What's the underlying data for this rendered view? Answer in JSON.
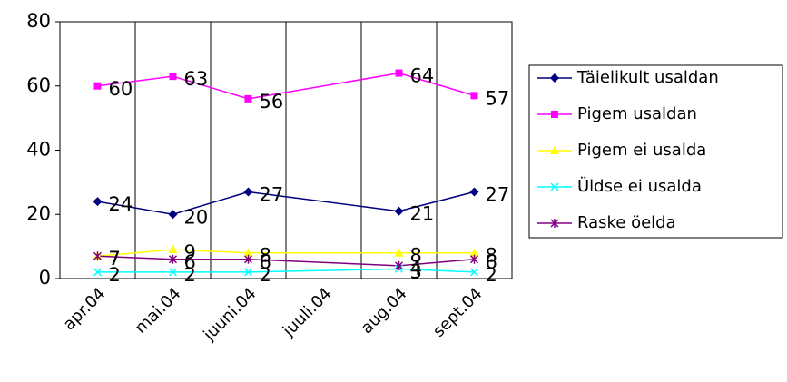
{
  "chart_data": {
    "type": "line",
    "categories": [
      "apr.04",
      "mai.04",
      "juuni.04",
      "juuli.04",
      "aug.04",
      "sept.04"
    ],
    "series": [
      {
        "name": "Täielikult usaldan",
        "color": "#000080",
        "marker": "diamond",
        "values": [
          24,
          20,
          27,
          null,
          21,
          27
        ]
      },
      {
        "name": "Pigem usaldan",
        "color": "#ff00ff",
        "marker": "square",
        "values": [
          60,
          63,
          56,
          null,
          64,
          57
        ]
      },
      {
        "name": "Pigem ei usalda",
        "color": "#ffff00",
        "marker": "triangle",
        "values": [
          7,
          9,
          8,
          null,
          8,
          8
        ]
      },
      {
        "name": "Üldse ei usalda",
        "color": "#00ffff",
        "marker": "x",
        "values": [
          2,
          2,
          2,
          null,
          3,
          2
        ]
      },
      {
        "name": "Raske öelda",
        "color": "#800080",
        "marker": "star",
        "values": [
          7,
          6,
          6,
          null,
          4,
          6
        ]
      }
    ],
    "ylim": [
      0,
      80
    ],
    "yticks": [
      0,
      20,
      40,
      60,
      80
    ],
    "connect_gaps": true,
    "legend": "right"
  }
}
